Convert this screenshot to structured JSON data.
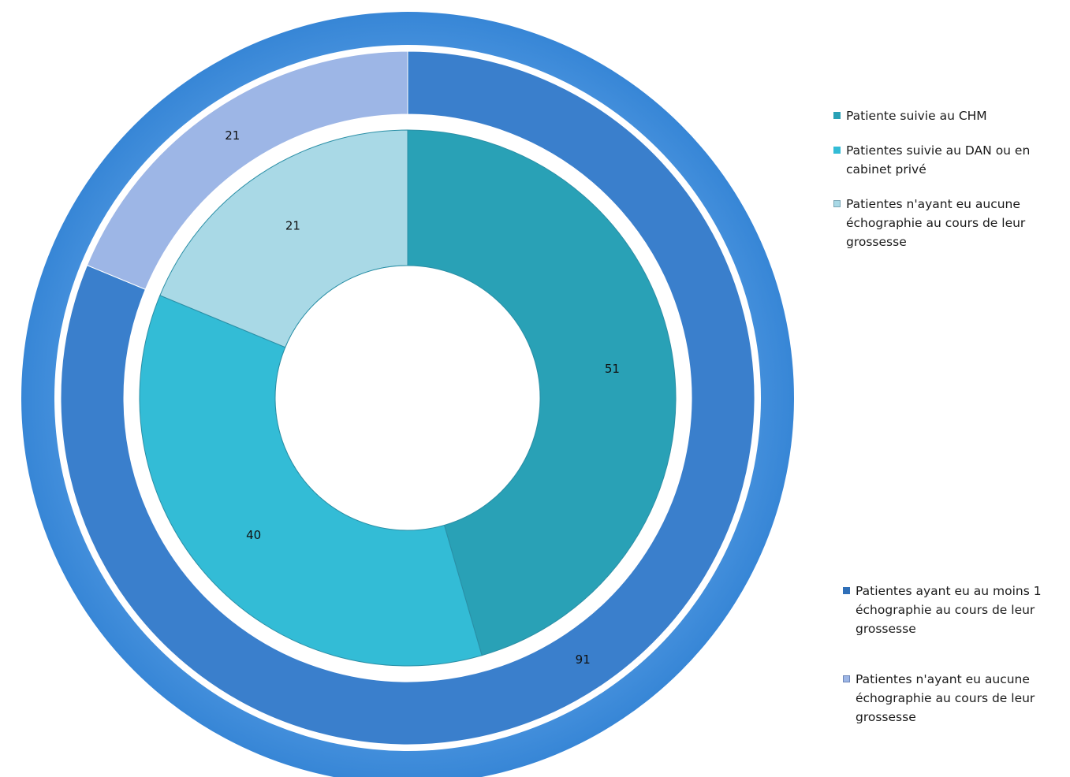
{
  "chart_data": {
    "type": "doughnut",
    "title": "",
    "rings": [
      {
        "name": "outer",
        "categories": [
          "Patientes ayant eu au moins 1 échographie au cours de leur grossesse",
          "Patientes n'ayant eu aucune échographie au cours de leur grossesse"
        ],
        "values": [
          91,
          21
        ],
        "labels": [
          "91",
          "21"
        ],
        "colors": [
          "#3a7fcc",
          "#9db6e6"
        ]
      },
      {
        "name": "inner",
        "categories": [
          "Patiente suivie au CHM",
          "Patientes suivie au DAN ou en cabinet privé",
          "Patientes n'ayant eu aucune échographie au cours de leur grossesse"
        ],
        "values": [
          51,
          40,
          21
        ],
        "labels": [
          "51",
          "40",
          "21"
        ],
        "colors": [
          "#29a1b6",
          "#33bcd6",
          "#a9d9e6"
        ]
      }
    ],
    "legend_placement": "right"
  },
  "legend_inner": [
    {
      "label": "Patiente suivie au CHM",
      "color": "#29a1b6"
    },
    {
      "label": "Patientes suivie au DAN ou en cabinet privé",
      "color": "#33bcd6"
    },
    {
      "label": "Patientes n'ayant eu aucune échographie au cours de leur grossesse",
      "color": "#a9d9e6"
    }
  ],
  "legend_outer": [
    {
      "label": "Patientes ayant eu au moins 1 échographie au cours de leur grossesse",
      "color": "#2f6fb8"
    },
    {
      "label": "Patientes n'ayant eu aucune échographie au cours de leur grossesse",
      "color": "#9db6e6"
    }
  ]
}
